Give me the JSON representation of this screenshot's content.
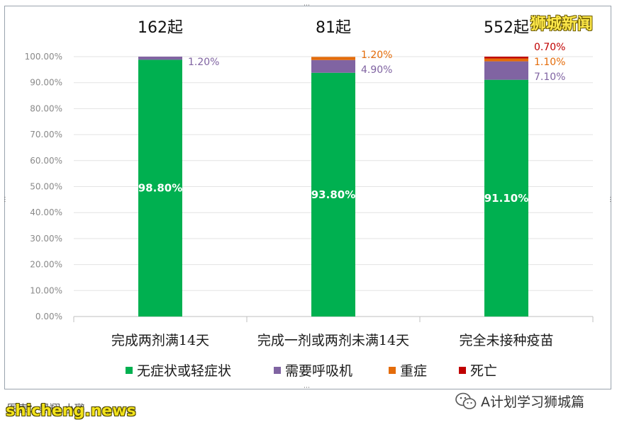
{
  "chart_data": {
    "type": "bar",
    "stacked": true,
    "categories": [
      "完成两剂满14天",
      "完成一剂或两剂未满14天",
      "完全未接种疫苗"
    ],
    "case_counts": [
      "162起",
      "81起",
      "552起"
    ],
    "series": [
      {
        "name": "无症状或轻症状",
        "color": "#00b050",
        "values": [
          98.8,
          93.8,
          91.1
        ],
        "labels": [
          "98.80%",
          "93.80%",
          "91.10%"
        ]
      },
      {
        "name": "需要呼吸机",
        "color": "#8064a2",
        "values": [
          1.2,
          4.9,
          7.1
        ],
        "labels": [
          "1.20%",
          "4.90%",
          "7.10%"
        ]
      },
      {
        "name": "重症",
        "color": "#e46c0a",
        "values": [
          0,
          1.2,
          1.1
        ],
        "labels": [
          "",
          "1.20%",
          "1.10%"
        ]
      },
      {
        "name": "死亡",
        "color": "#c00000",
        "values": [
          0,
          0,
          0.7
        ],
        "labels": [
          "",
          "",
          "0.70%"
        ]
      }
    ],
    "ylim": [
      0,
      100
    ],
    "yticks": [
      "0.00%",
      "10.00%",
      "20.00%",
      "30.00%",
      "40.00%",
      "50.00%",
      "60.00%",
      "70.00%",
      "80.00%",
      "90.00%",
      "100.00%"
    ],
    "grid": true,
    "legend": "bottom"
  },
  "watermarks": {
    "brand": "狮城新闻",
    "source": "图表：黑翔 小璐",
    "site": "shicheng.news",
    "wechat": "A计划学习狮城篇"
  },
  "icons": {
    "wechat": "wechat-icon"
  }
}
